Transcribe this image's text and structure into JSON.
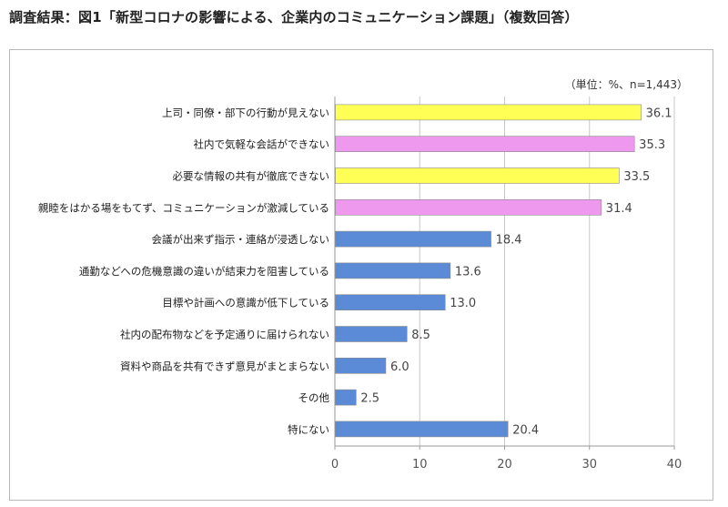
{
  "title": "調査結果：図1「新型コロナの影響による、企業内のコミュニケーション課題」（複数回答）",
  "unit_note": "（単位：%、n=1,443）",
  "colors": {
    "yellow": "#ffff55",
    "pink": "#ee99ee",
    "blue": "#5b8ad6",
    "axis": "#9a9a9a",
    "grid": "#c8c8c8"
  },
  "chart_data": {
    "type": "bar",
    "orientation": "horizontal",
    "title": "調査結果：図1「新型コロナの影響による、企業内のコミュニケーション課題」（複数回答）",
    "subtitle": "（単位：%、n=1,443）",
    "categories": [
      "上司・同僚・部下の行動が見えない",
      "社内で気軽な会話ができない",
      "必要な情報の共有が徹底できない",
      "親睦をはかる場をもてず、コミュニケーションが激減している",
      "会議が出来ず指示・連絡が浸透しない",
      "通勤などへの危機意識の違いが結束力を阻害している",
      "目標や計画への意識が低下している",
      "社内の配布物などを予定通りに届けられない",
      "資料や商品を共有できず意見がまとまらない",
      "その他",
      "特にない"
    ],
    "values": [
      36.1,
      35.3,
      33.5,
      31.4,
      18.4,
      13.6,
      13.0,
      8.5,
      6.0,
      2.5,
      20.4
    ],
    "value_labels": [
      "36.1",
      "35.3",
      "33.5",
      "31.4",
      "18.4",
      "13.6",
      "13.0",
      "8.5",
      "6.0",
      "2.5",
      "20.4"
    ],
    "bar_colors": [
      "yellow",
      "pink",
      "yellow",
      "pink",
      "blue",
      "blue",
      "blue",
      "blue",
      "blue",
      "blue",
      "blue"
    ],
    "xlim": [
      0,
      40
    ],
    "xticks": [
      0,
      10,
      20,
      30,
      40
    ],
    "xtick_labels": [
      "0",
      "10",
      "20",
      "30",
      "40"
    ],
    "xlabel": "",
    "ylabel": "",
    "grid": "vertical"
  }
}
